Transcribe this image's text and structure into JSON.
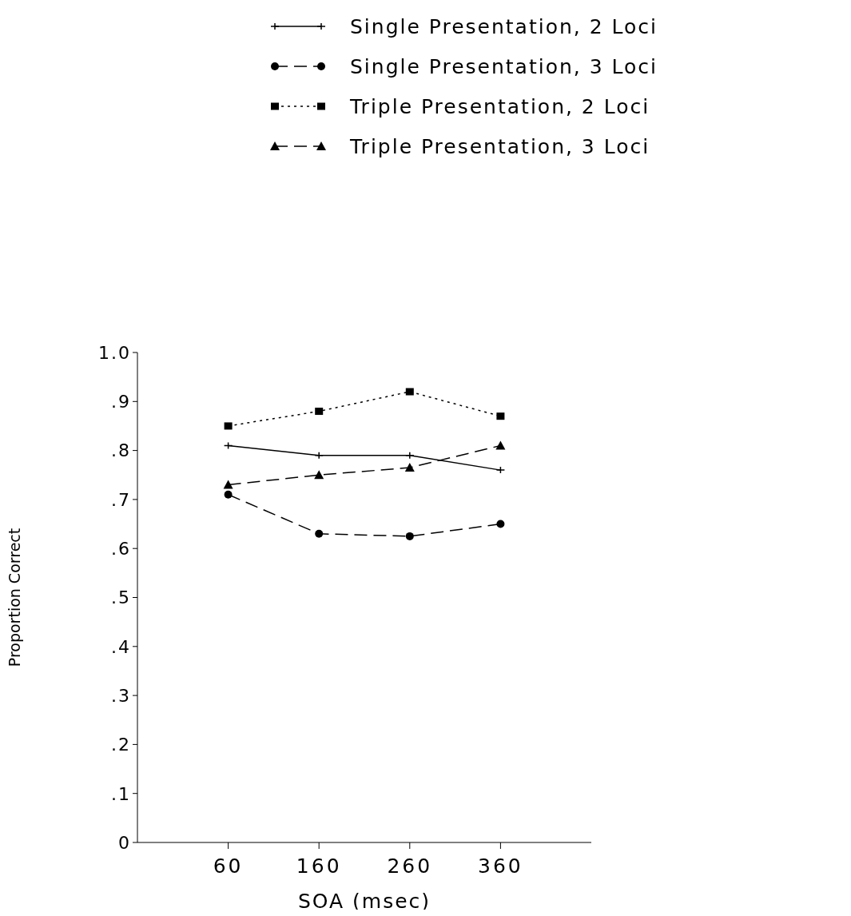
{
  "chart_data": {
    "type": "line",
    "xlabel": "SOA (msec)",
    "ylabel": "Proportion Correct",
    "x": [
      60,
      160,
      260,
      360
    ],
    "xlim": [
      -40,
      460
    ],
    "xticks": [
      60,
      160,
      260,
      360
    ],
    "ylim": [
      0,
      1
    ],
    "yticks": [
      0,
      {
        "value": 0.1,
        "label": ".1"
      },
      {
        "value": 0.2,
        "label": ".2"
      },
      {
        "value": 0.3,
        "label": ".3"
      },
      {
        "value": 0.4,
        "label": ".4"
      },
      {
        "value": 0.5,
        "label": ".5"
      },
      {
        "value": 0.6,
        "label": ".6"
      },
      {
        "value": 0.7,
        "label": ".7"
      },
      {
        "value": 0.8,
        "label": ".8"
      },
      {
        "value": 0.9,
        "label": ".9"
      },
      {
        "value": 1,
        "label": "1.0"
      }
    ],
    "grid": false,
    "legend": "top right",
    "series": [
      {
        "name": "Single Presentation, 2 Loci",
        "color": "#000000",
        "marker": "cross",
        "line_style": "solid",
        "values": [
          0.81,
          0.79,
          0.79,
          0.76
        ]
      },
      {
        "name": "Single Presentation, 3 Loci",
        "color": "#000000",
        "marker": "circle",
        "line_style": "dashed",
        "values": [
          0.71,
          0.63,
          0.625,
          0.65
        ]
      },
      {
        "name": "Triple Presentation, 2 Loci",
        "color": "#000000",
        "marker": "square",
        "line_style": "dotted",
        "values": [
          0.85,
          0.88,
          0.92,
          0.87
        ]
      },
      {
        "name": "Triple Presentation, 3 Loci",
        "color": "#000000",
        "marker": "triangle",
        "line_style": "dashed",
        "values": [
          0.73,
          0.75,
          0.765,
          0.81
        ]
      }
    ]
  }
}
